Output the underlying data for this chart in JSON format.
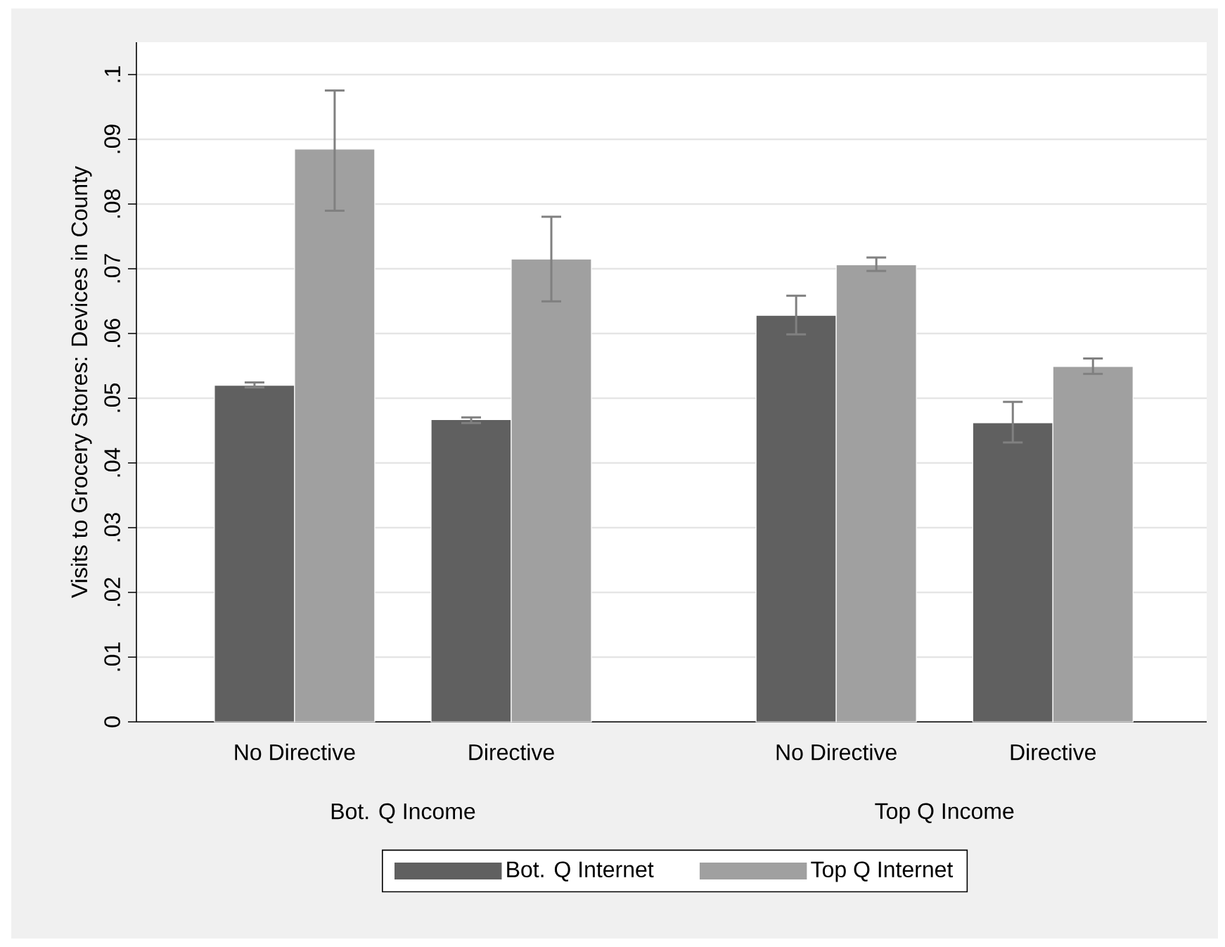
{
  "chart_data": {
    "type": "bar",
    "ylabel": "Visits to Grocery Stores: Devices in County",
    "categories": [
      "No Directive",
      "Directive",
      "No Directive",
      "Directive"
    ],
    "annotations": [
      "Bot. Q Income",
      "Top Q Income"
    ],
    "series": [
      {
        "name": "Bot. Q Internet",
        "color": "#606060",
        "values": [
          0.052,
          0.0467,
          0.0628,
          0.0462
        ],
        "errors": [
          [
            0.0515,
            0.0526
          ],
          [
            0.046,
            0.0472
          ],
          [
            0.0597,
            0.066
          ],
          [
            0.043,
            0.0496
          ]
        ]
      },
      {
        "name": "Top Q Internet",
        "color": "#a0a0a0",
        "values": [
          0.0885,
          0.0715,
          0.0706,
          0.0549
        ],
        "errors": [
          [
            0.0788,
            0.0977
          ],
          [
            0.0648,
            0.0782
          ],
          [
            0.0695,
            0.0719
          ],
          [
            0.0536,
            0.0563
          ]
        ]
      }
    ],
    "ylim": [
      0,
      0.105
    ],
    "yticks": [
      0,
      {
        "value": 0.01,
        "label": ".01"
      },
      {
        "value": 0.02,
        "label": ".02"
      },
      {
        "value": 0.03,
        "label": ".03"
      },
      {
        "value": 0.04,
        "label": ".04"
      },
      {
        "value": 0.05,
        "label": ".05"
      },
      {
        "value": 0.06,
        "label": ".06"
      },
      {
        "value": 0.07,
        "label": ".07"
      },
      {
        "value": 0.08,
        "label": ".08"
      },
      {
        "value": 0.09,
        "label": ".09"
      },
      {
        "value": 0.1,
        "label": ".1"
      }
    ],
    "grid": "y",
    "legend": "bottom"
  }
}
